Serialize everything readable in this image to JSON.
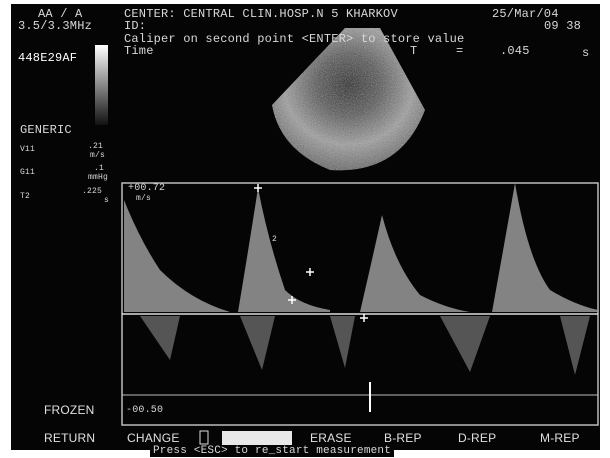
{
  "left_panel": {
    "mode": "AA / A",
    "frequency": "3.5/3.3MHz",
    "code": "448E29AF",
    "preset": "GENERIC",
    "measurements": [
      {
        "label": "V11",
        "value": ".21",
        "unit": "m/s"
      },
      {
        "label": "G11",
        "value": ".1",
        "unit": "mmHg"
      },
      {
        "label": "T2",
        "value": ".225",
        "unit": "s"
      }
    ],
    "status": "FROZEN"
  },
  "header": {
    "center": "CENTER: CENTRAL CLIN.HOSP.N 5 KHARKOV",
    "date": "25/Mar/04",
    "id": "ID:",
    "time": "09 38",
    "prompt": "Caliper on second point <ENTER> to store value",
    "measure_name": "Time",
    "measure_symbol": "T",
    "equals": "=",
    "measure_value": ".045",
    "measure_unit": "s"
  },
  "doppler": {
    "top_scale": "+00.72",
    "top_unit": "m/s",
    "bottom_scale": "-00.50",
    "marker": "2"
  },
  "menu": {
    "items": [
      "RETURN",
      "CHANGE",
      "ERASE",
      "B-REP",
      "D-REP",
      "M-REP"
    ],
    "footer": "Press <ESC> to re_start measurement"
  }
}
